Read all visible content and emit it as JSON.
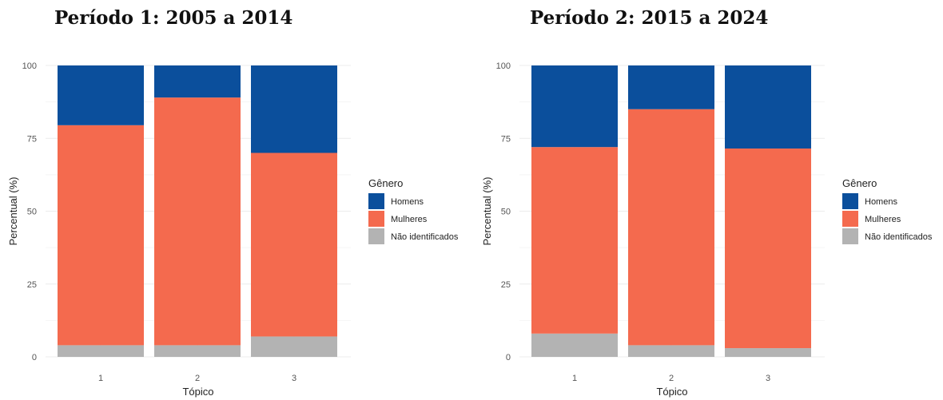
{
  "chart_data": [
    {
      "type": "bar",
      "stacked": true,
      "title": "Período 1: 2005 a 2014",
      "xlabel": "Tópico",
      "ylabel": "Percentual (%)",
      "categories": [
        "1",
        "2",
        "3"
      ],
      "yticks": [
        "0",
        "25",
        "50",
        "75",
        "100"
      ],
      "ylim": [
        0,
        100
      ],
      "grid": true,
      "legend_title": "Gênero",
      "legend_position": "right",
      "series": [
        {
          "name": "Não identificados",
          "color": "#b3b3b3",
          "values": [
            4,
            4,
            7
          ]
        },
        {
          "name": "Mulheres",
          "color": "#f46a4e",
          "values": [
            75.5,
            85,
            63
          ]
        },
        {
          "name": "Homens",
          "color": "#0b4f9c",
          "values": [
            20.5,
            11,
            30
          ]
        }
      ]
    },
    {
      "type": "bar",
      "stacked": true,
      "title": "Período 2: 2015 a 2024",
      "xlabel": "Tópico",
      "ylabel": "Percentual (%)",
      "categories": [
        "1",
        "2",
        "3"
      ],
      "yticks": [
        "0",
        "25",
        "50",
        "75",
        "100"
      ],
      "ylim": [
        0,
        100
      ],
      "grid": true,
      "legend_title": "Gênero",
      "legend_position": "right",
      "series": [
        {
          "name": "Não identificados",
          "color": "#b3b3b3",
          "values": [
            8,
            4,
            3
          ]
        },
        {
          "name": "Mulheres",
          "color": "#f46a4e",
          "values": [
            64,
            81,
            68.5
          ]
        },
        {
          "name": "Homens",
          "color": "#0b4f9c",
          "values": [
            28,
            15,
            28.5
          ]
        }
      ]
    }
  ]
}
